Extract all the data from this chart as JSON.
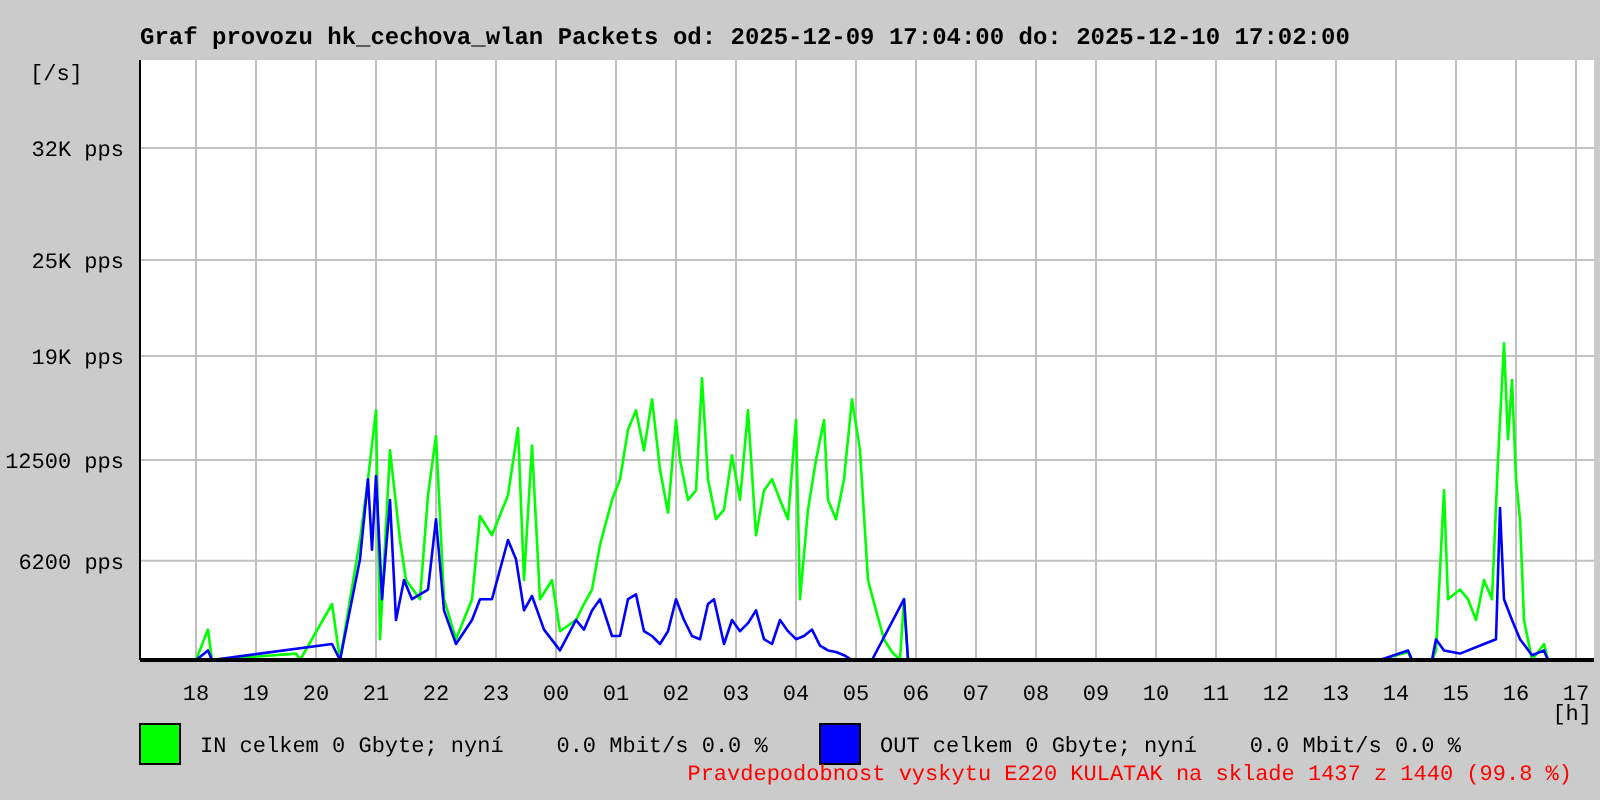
{
  "chart_data": {
    "type": "line",
    "title": "Graf provozu hk_cechova_wlan Packets od: 2025-12-09 17:04:00 do: 2025-12-10 17:02:00",
    "ylabel": "[/s]",
    "xlabel": "[h]",
    "xlim": [
      "2025-12-09T17:04",
      "2025-12-10T17:18"
    ],
    "xticks": [
      {
        "value": "2025-12-09T18:00",
        "label": "18"
      },
      {
        "value": "2025-12-09T19:00",
        "label": "19"
      },
      {
        "value": "2025-12-09T20:00",
        "label": "20"
      },
      {
        "value": "2025-12-09T21:00",
        "label": "21"
      },
      {
        "value": "2025-12-09T22:00",
        "label": "22"
      },
      {
        "value": "2025-12-09T23:00",
        "label": "23"
      },
      {
        "value": "2025-12-10T00:00",
        "label": "00"
      },
      {
        "value": "2025-12-10T01:00",
        "label": "01"
      },
      {
        "value": "2025-12-10T02:00",
        "label": "02"
      },
      {
        "value": "2025-12-10T03:00",
        "label": "03"
      },
      {
        "value": "2025-12-10T04:00",
        "label": "04"
      },
      {
        "value": "2025-12-10T05:00",
        "label": "05"
      },
      {
        "value": "2025-12-10T06:00",
        "label": "06"
      },
      {
        "value": "2025-12-10T07:00",
        "label": "07"
      },
      {
        "value": "2025-12-10T08:00",
        "label": "08"
      },
      {
        "value": "2025-12-10T09:00",
        "label": "09"
      },
      {
        "value": "2025-12-10T10:00",
        "label": "10"
      },
      {
        "value": "2025-12-10T11:00",
        "label": "11"
      },
      {
        "value": "2025-12-10T12:00",
        "label": "12"
      },
      {
        "value": "2025-12-10T13:00",
        "label": "13"
      },
      {
        "value": "2025-12-10T14:00",
        "label": "14"
      },
      {
        "value": "2025-12-10T15:00",
        "label": "15"
      },
      {
        "value": "2025-12-10T16:00",
        "label": "16"
      },
      {
        "value": "2025-12-10T17:00",
        "label": "17"
      }
    ],
    "ylim": [
      0,
      37500
    ],
    "yticks": [
      {
        "value": 6200,
        "label": "6200 pps"
      },
      {
        "value": 12500,
        "label": "12500 pps"
      },
      {
        "value": 19000,
        "label": "19K pps"
      },
      {
        "value": 25000,
        "label": "25K pps"
      },
      {
        "value": 32000,
        "label": "32K pps"
      }
    ],
    "grid": true,
    "legend": "bottom",
    "line_style": "solid",
    "marker": "none",
    "annotations": [
      "Pravdepodobnost vyskytu E220 KULATAK na sklade 1437 z 1440 (99.8 %)"
    ],
    "series": [
      {
        "name": "IN celkem 0 Gbyte; nyní    0.0 Mbit/s 0.0 %",
        "color": "#00ff00",
        "x": [
          "2025-12-09T17:04",
          "2025-12-09T18:00",
          "2025-12-09T18:12",
          "2025-12-09T18:16",
          "2025-12-09T19:40",
          "2025-12-09T19:44",
          "2025-12-09T20:16",
          "2025-12-09T20:24",
          "2025-12-09T20:44",
          "2025-12-09T20:52",
          "2025-12-09T21:00",
          "2025-12-09T21:04",
          "2025-12-09T21:14",
          "2025-12-09T21:24",
          "2025-12-09T21:30",
          "2025-12-09T21:44",
          "2025-12-09T21:52",
          "2025-12-09T22:00",
          "2025-12-09T22:08",
          "2025-12-09T22:20",
          "2025-12-09T22:36",
          "2025-12-09T22:44",
          "2025-12-09T22:56",
          "2025-12-09T23:12",
          "2025-12-09T23:22",
          "2025-12-09T23:28",
          "2025-12-09T23:36",
          "2025-12-09T23:44",
          "2025-12-09T23:56",
          "2025-12-10T00:04",
          "2025-12-10T00:20",
          "2025-12-10T00:28",
          "2025-12-10T00:36",
          "2025-12-10T00:44",
          "2025-12-10T00:56",
          "2025-12-10T01:04",
          "2025-12-10T01:12",
          "2025-12-10T01:20",
          "2025-12-10T01:28",
          "2025-12-10T01:36",
          "2025-12-10T01:44",
          "2025-12-10T01:52",
          "2025-12-10T02:00",
          "2025-12-10T02:04",
          "2025-12-10T02:12",
          "2025-12-10T02:20",
          "2025-12-10T02:26",
          "2025-12-10T02:32",
          "2025-12-10T02:40",
          "2025-12-10T02:48",
          "2025-12-10T02:56",
          "2025-12-10T03:04",
          "2025-12-10T03:12",
          "2025-12-10T03:20",
          "2025-12-10T03:28",
          "2025-12-10T03:36",
          "2025-12-10T03:44",
          "2025-12-10T03:52",
          "2025-12-10T04:00",
          "2025-12-10T04:04",
          "2025-12-10T04:12",
          "2025-12-10T04:20",
          "2025-12-10T04:28",
          "2025-12-10T04:32",
          "2025-12-10T04:40",
          "2025-12-10T04:48",
          "2025-12-10T04:56",
          "2025-12-10T05:04",
          "2025-12-10T05:12",
          "2025-12-10T05:20",
          "2025-12-10T05:28",
          "2025-12-10T05:36",
          "2025-12-10T05:44",
          "2025-12-10T05:48",
          "2025-12-10T05:52",
          "2025-12-10T13:44",
          "2025-12-10T14:12",
          "2025-12-10T14:16",
          "2025-12-10T14:36",
          "2025-12-10T14:40",
          "2025-12-10T14:48",
          "2025-12-10T14:52",
          "2025-12-10T15:04",
          "2025-12-10T15:12",
          "2025-12-10T15:20",
          "2025-12-10T15:28",
          "2025-12-10T15:36",
          "2025-12-10T15:42",
          "2025-12-10T15:48",
          "2025-12-10T15:52",
          "2025-12-10T15:56",
          "2025-12-10T16:00",
          "2025-12-10T16:04",
          "2025-12-10T16:08",
          "2025-12-10T16:16",
          "2025-12-10T16:28",
          "2025-12-10T16:32",
          "2025-12-10T17:02"
        ],
        "values": [
          0,
          0,
          1900,
          0,
          400,
          0,
          3500,
          0,
          7500,
          11300,
          15600,
          1300,
          13100,
          7500,
          5000,
          3800,
          10300,
          14000,
          3800,
          1300,
          3800,
          9000,
          7800,
          10300,
          14500,
          5000,
          13400,
          3800,
          5000,
          1800,
          2500,
          3500,
          4400,
          7200,
          10000,
          11300,
          14400,
          15600,
          13100,
          16300,
          11900,
          9200,
          15000,
          12500,
          10000,
          10600,
          17600,
          11300,
          8800,
          9400,
          12800,
          10000,
          15600,
          7800,
          10600,
          11300,
          10000,
          8800,
          15000,
          3800,
          9400,
          12500,
          15000,
          10000,
          8800,
          11300,
          16300,
          13100,
          5000,
          3100,
          1300,
          500,
          0,
          3800,
          0,
          0,
          500,
          0,
          0,
          600,
          10600,
          3800,
          4400,
          3800,
          2500,
          5000,
          3800,
          12500,
          19800,
          13800,
          17500,
          11300,
          8800,
          2500,
          0,
          1000,
          0,
          0
        ]
      },
      {
        "name": "OUT celkem 0 Gbyte; nyní    0.0 Mbit/s 0.0 %",
        "color": "#0000ff",
        "x": [
          "2025-12-09T17:04",
          "2025-12-09T18:00",
          "2025-12-09T18:12",
          "2025-12-09T18:16",
          "2025-12-09T20:16",
          "2025-12-09T20:24",
          "2025-12-09T20:44",
          "2025-12-09T20:52",
          "2025-12-09T20:56",
          "2025-12-09T21:00",
          "2025-12-09T21:06",
          "2025-12-09T21:14",
          "2025-12-09T21:20",
          "2025-12-09T21:28",
          "2025-12-09T21:36",
          "2025-12-09T21:52",
          "2025-12-09T22:00",
          "2025-12-09T22:08",
          "2025-12-09T22:20",
          "2025-12-09T22:36",
          "2025-12-09T22:44",
          "2025-12-09T22:56",
          "2025-12-09T23:12",
          "2025-12-09T23:20",
          "2025-12-09T23:28",
          "2025-12-09T23:36",
          "2025-12-09T23:48",
          "2025-12-10T00:04",
          "2025-12-10T00:20",
          "2025-12-10T00:28",
          "2025-12-10T00:36",
          "2025-12-10T00:44",
          "2025-12-10T00:56",
          "2025-12-10T01:04",
          "2025-12-10T01:12",
          "2025-12-10T01:20",
          "2025-12-10T01:28",
          "2025-12-10T01:36",
          "2025-12-10T01:44",
          "2025-12-10T01:52",
          "2025-12-10T02:00",
          "2025-12-10T02:08",
          "2025-12-10T02:16",
          "2025-12-10T02:24",
          "2025-12-10T02:32",
          "2025-12-10T02:38",
          "2025-12-10T02:48",
          "2025-12-10T02:56",
          "2025-12-10T03:04",
          "2025-12-10T03:12",
          "2025-12-10T03:20",
          "2025-12-10T03:28",
          "2025-12-10T03:36",
          "2025-12-10T03:44",
          "2025-12-10T03:52",
          "2025-12-10T04:00",
          "2025-12-10T04:08",
          "2025-12-10T04:16",
          "2025-12-10T04:24",
          "2025-12-10T04:32",
          "2025-12-10T04:40",
          "2025-12-10T04:48",
          "2025-12-10T04:56",
          "2025-12-10T05:16",
          "2025-12-10T05:48",
          "2025-12-10T05:52",
          "2025-12-10T13:44",
          "2025-12-10T14:12",
          "2025-12-10T14:16",
          "2025-12-10T14:36",
          "2025-12-10T14:40",
          "2025-12-10T14:48",
          "2025-12-10T15:04",
          "2025-12-10T15:28",
          "2025-12-10T15:40",
          "2025-12-10T15:44",
          "2025-12-10T15:48",
          "2025-12-10T15:56",
          "2025-12-10T16:04",
          "2025-12-10T16:16",
          "2025-12-10T16:28",
          "2025-12-10T16:32",
          "2025-12-10T17:02"
        ],
        "values": [
          0,
          0,
          600,
          0,
          1000,
          0,
          6300,
          11300,
          6900,
          11500,
          3800,
          10000,
          2500,
          5000,
          3800,
          4400,
          8800,
          3100,
          1000,
          2500,
          3800,
          3800,
          7500,
          6300,
          3100,
          4000,
          1900,
          600,
          2500,
          1900,
          3100,
          3800,
          1500,
          1500,
          3800,
          4100,
          1800,
          1500,
          1000,
          1800,
          3800,
          2500,
          1500,
          1300,
          3500,
          3800,
          1000,
          2500,
          1800,
          2300,
          3100,
          1300,
          1000,
          2500,
          1800,
          1300,
          1500,
          1900,
          900,
          600,
          500,
          300,
          0,
          0,
          3800,
          0,
          0,
          600,
          0,
          0,
          1300,
          600,
          400,
          1000,
          1300,
          9500,
          3800,
          2500,
          1300,
          300,
          600,
          0,
          0
        ]
      }
    ]
  }
}
